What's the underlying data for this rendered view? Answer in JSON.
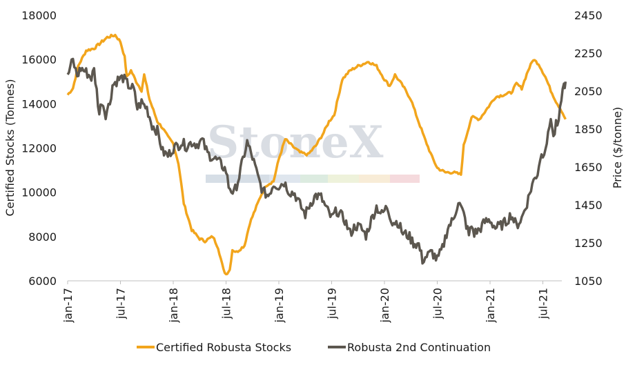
{
  "chart_data": {
    "type": "line",
    "watermark": "StoneX",
    "x_labels": [
      "jan-17",
      "jul-17",
      "jan-18",
      "jul-18",
      "jan-19",
      "jul-19",
      "jan-20",
      "jul-20",
      "jan-21",
      "jul-21"
    ],
    "y_left": {
      "label": "Certified Stocks (Tonnes)",
      "ticks": [
        "6000",
        "8000",
        "10000",
        "12000",
        "14000",
        "16000",
        "18000"
      ],
      "min": 6000,
      "max": 18000
    },
    "y_right": {
      "label": "Price ($/tonne)",
      "ticks": [
        "1050",
        "1250",
        "1450",
        "1650",
        "1850",
        "2050",
        "2250",
        "2450"
      ],
      "min": 1050,
      "max": 2450
    },
    "series": [
      {
        "name": "Certified Robusta Stocks",
        "axis": "left",
        "color": "#F2A51C",
        "points": [
          [
            0,
            14400
          ],
          [
            0.1,
            14700
          ],
          [
            0.2,
            15700
          ],
          [
            0.35,
            16400
          ],
          [
            0.5,
            16500
          ],
          [
            0.65,
            16800
          ],
          [
            0.75,
            17000
          ],
          [
            0.9,
            17100
          ],
          [
            1.0,
            16800
          ],
          [
            1.08,
            16100
          ],
          [
            1.12,
            15200
          ],
          [
            1.2,
            15500
          ],
          [
            1.3,
            15000
          ],
          [
            1.4,
            14600
          ],
          [
            1.45,
            15300
          ],
          [
            1.55,
            14200
          ],
          [
            1.7,
            13200
          ],
          [
            1.8,
            12900
          ],
          [
            1.9,
            12500
          ],
          [
            2.0,
            12200
          ],
          [
            2.1,
            11300
          ],
          [
            2.2,
            9500
          ],
          [
            2.35,
            8300
          ],
          [
            2.5,
            7900
          ],
          [
            2.6,
            7800
          ],
          [
            2.75,
            8000
          ],
          [
            2.85,
            7500
          ],
          [
            2.95,
            6500
          ],
          [
            3.0,
            6300
          ],
          [
            3.07,
            6500
          ],
          [
            3.12,
            7400
          ],
          [
            3.2,
            7300
          ],
          [
            3.35,
            7600
          ],
          [
            3.45,
            8600
          ],
          [
            3.55,
            9200
          ],
          [
            3.65,
            9800
          ],
          [
            3.75,
            10300
          ],
          [
            3.9,
            10500
          ],
          [
            4.0,
            11500
          ],
          [
            4.12,
            12400
          ],
          [
            4.25,
            12100
          ],
          [
            4.4,
            11800
          ],
          [
            4.55,
            11700
          ],
          [
            4.7,
            12100
          ],
          [
            4.85,
            12700
          ],
          [
            4.95,
            13200
          ],
          [
            5.05,
            13500
          ],
          [
            5.2,
            15100
          ],
          [
            5.35,
            15500
          ],
          [
            5.5,
            15700
          ],
          [
            5.6,
            15800
          ],
          [
            5.7,
            15900
          ],
          [
            5.85,
            15700
          ],
          [
            6.0,
            15100
          ],
          [
            6.1,
            14800
          ],
          [
            6.2,
            15300
          ],
          [
            6.35,
            14800
          ],
          [
            6.5,
            14200
          ],
          [
            6.6,
            13500
          ],
          [
            6.75,
            12500
          ],
          [
            6.9,
            11600
          ],
          [
            7.0,
            11100
          ],
          [
            7.15,
            10900
          ],
          [
            7.3,
            10900
          ],
          [
            7.45,
            10800
          ],
          [
            7.5,
            12100
          ],
          [
            7.65,
            13400
          ],
          [
            7.8,
            13300
          ],
          [
            7.95,
            13800
          ],
          [
            8.1,
            14300
          ],
          [
            8.25,
            14400
          ],
          [
            8.4,
            14500
          ],
          [
            8.5,
            14900
          ],
          [
            8.6,
            14700
          ],
          [
            8.72,
            15500
          ],
          [
            8.82,
            16000
          ],
          [
            8.92,
            15800
          ],
          [
            9.05,
            15200
          ],
          [
            9.15,
            14600
          ],
          [
            9.25,
            14100
          ],
          [
            9.35,
            13700
          ],
          [
            9.43,
            13300
          ]
        ]
      },
      {
        "name": "Robusta 2nd Continuation",
        "axis": "right",
        "color": "#5C574F",
        "points": [
          [
            0,
            2120
          ],
          [
            0.05,
            2180
          ],
          [
            0.1,
            2210
          ],
          [
            0.18,
            2130
          ],
          [
            0.25,
            2170
          ],
          [
            0.35,
            2150
          ],
          [
            0.45,
            2120
          ],
          [
            0.5,
            2160
          ],
          [
            0.55,
            2050
          ],
          [
            0.6,
            1930
          ],
          [
            0.65,
            2000
          ],
          [
            0.72,
            1930
          ],
          [
            0.8,
            1990
          ],
          [
            0.85,
            2080
          ],
          [
            0.95,
            2110
          ],
          [
            1.05,
            2120
          ],
          [
            1.15,
            2080
          ],
          [
            1.25,
            2060
          ],
          [
            1.32,
            1960
          ],
          [
            1.4,
            1990
          ],
          [
            1.5,
            1960
          ],
          [
            1.6,
            1870
          ],
          [
            1.7,
            1840
          ],
          [
            1.8,
            1730
          ],
          [
            1.9,
            1710
          ],
          [
            2.0,
            1750
          ],
          [
            2.08,
            1760
          ],
          [
            2.15,
            1780
          ],
          [
            2.25,
            1760
          ],
          [
            2.35,
            1780
          ],
          [
            2.45,
            1770
          ],
          [
            2.55,
            1790
          ],
          [
            2.65,
            1720
          ],
          [
            2.75,
            1700
          ],
          [
            2.85,
            1680
          ],
          [
            2.95,
            1650
          ],
          [
            3.0,
            1630
          ],
          [
            3.05,
            1550
          ],
          [
            3.15,
            1510
          ],
          [
            3.25,
            1600
          ],
          [
            3.32,
            1690
          ],
          [
            3.4,
            1780
          ],
          [
            3.5,
            1700
          ],
          [
            3.6,
            1600
          ],
          [
            3.7,
            1520
          ],
          [
            3.8,
            1500
          ],
          [
            3.9,
            1560
          ],
          [
            4.0,
            1550
          ],
          [
            4.1,
            1570
          ],
          [
            4.2,
            1520
          ],
          [
            4.3,
            1510
          ],
          [
            4.4,
            1450
          ],
          [
            4.5,
            1400
          ],
          [
            4.6,
            1460
          ],
          [
            4.7,
            1500
          ],
          [
            4.8,
            1490
          ],
          [
            4.9,
            1430
          ],
          [
            5.0,
            1380
          ],
          [
            5.1,
            1420
          ],
          [
            5.25,
            1370
          ],
          [
            5.35,
            1300
          ],
          [
            5.45,
            1340
          ],
          [
            5.55,
            1330
          ],
          [
            5.65,
            1290
          ],
          [
            5.75,
            1370
          ],
          [
            5.85,
            1440
          ],
          [
            5.95,
            1400
          ],
          [
            6.05,
            1440
          ],
          [
            6.15,
            1360
          ],
          [
            6.25,
            1360
          ],
          [
            6.35,
            1300
          ],
          [
            6.45,
            1290
          ],
          [
            6.55,
            1250
          ],
          [
            6.65,
            1240
          ],
          [
            6.72,
            1160
          ],
          [
            6.8,
            1180
          ],
          [
            6.9,
            1200
          ],
          [
            7.0,
            1160
          ],
          [
            7.1,
            1220
          ],
          [
            7.2,
            1330
          ],
          [
            7.3,
            1370
          ],
          [
            7.4,
            1470
          ],
          [
            7.5,
            1400
          ],
          [
            7.6,
            1290
          ],
          [
            7.65,
            1340
          ],
          [
            7.7,
            1300
          ],
          [
            7.8,
            1320
          ],
          [
            7.9,
            1360
          ],
          [
            8.0,
            1370
          ],
          [
            8.1,
            1330
          ],
          [
            8.2,
            1340
          ],
          [
            8.3,
            1360
          ],
          [
            8.4,
            1400
          ],
          [
            8.5,
            1340
          ],
          [
            8.6,
            1380
          ],
          [
            8.7,
            1460
          ],
          [
            8.8,
            1560
          ],
          [
            8.85,
            1590
          ],
          [
            8.9,
            1620
          ],
          [
            8.95,
            1700
          ],
          [
            9.0,
            1720
          ],
          [
            9.05,
            1760
          ],
          [
            9.1,
            1810
          ],
          [
            9.15,
            1920
          ],
          [
            9.2,
            1800
          ],
          [
            9.25,
            1870
          ],
          [
            9.3,
            1870
          ],
          [
            9.35,
            2020
          ],
          [
            9.4,
            2080
          ],
          [
            9.43,
            2100
          ]
        ]
      }
    ],
    "legend_position": "bottom",
    "grid": false
  }
}
